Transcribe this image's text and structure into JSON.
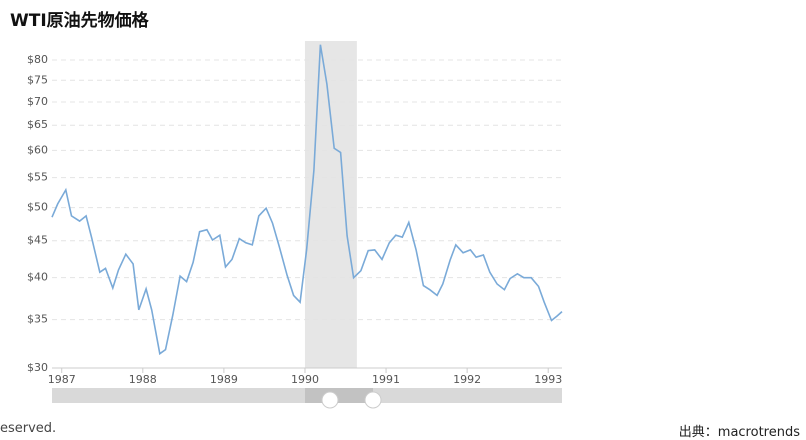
{
  "chart_data": {
    "type": "line",
    "title": "WTI原油先物価格",
    "log_y": true,
    "grid": true,
    "color": "#7aaad8",
    "x": [
      1986.88,
      1986.95,
      1987.05,
      1987.12,
      1987.22,
      1987.3,
      1987.37,
      1987.47,
      1987.54,
      1987.63,
      1987.7,
      1987.79,
      1987.88,
      1987.95,
      1988.04,
      1988.11,
      1988.21,
      1988.28,
      1988.37,
      1988.46,
      1988.54,
      1988.62,
      1988.7,
      1988.79,
      1988.86,
      1988.95,
      1989.02,
      1989.1,
      1989.19,
      1989.27,
      1989.35,
      1989.43,
      1989.52,
      1989.6,
      1989.68,
      1989.78,
      1989.86,
      1989.94,
      1990.02,
      1990.11,
      1990.19,
      1990.27,
      1990.36,
      1990.44,
      1990.52,
      1990.6,
      1990.69,
      1990.78,
      1990.86,
      1990.95,
      1991.04,
      1991.12,
      1991.2,
      1991.28,
      1991.37,
      1991.46,
      1991.54,
      1991.63,
      1991.7,
      1991.79,
      1991.86,
      1991.95,
      1992.04,
      1992.11,
      1992.2,
      1992.28,
      1992.37,
      1992.46,
      1992.53,
      1992.62,
      1992.7,
      1992.79,
      1992.88,
      1992.95,
      1993.04,
      1993.11,
      1993.17
    ],
    "values": [
      48.5,
      50.6,
      52.9,
      48.7,
      47.9,
      48.7,
      45.4,
      40.7,
      41.2,
      38.7,
      41.0,
      43.1,
      41.8,
      36.1,
      38.6,
      36.1,
      31.4,
      31.8,
      35.5,
      40.2,
      39.5,
      42.0,
      46.3,
      46.6,
      45.1,
      45.8,
      41.4,
      42.4,
      45.3,
      44.7,
      44.4,
      48.7,
      49.9,
      47.6,
      44.3,
      40.3,
      37.8,
      37.0,
      43.7,
      56.3,
      84.0,
      74.1,
      60.4,
      59.6,
      45.7,
      40.0,
      40.9,
      43.6,
      43.7,
      42.4,
      44.7,
      45.8,
      45.5,
      47.7,
      43.7,
      39.0,
      38.5,
      37.8,
      39.2,
      42.3,
      44.4,
      43.3,
      43.7,
      42.7,
      43.0,
      40.7,
      39.2,
      38.5,
      39.9,
      40.5,
      40.0,
      40.0,
      38.9,
      37.0,
      34.9,
      35.4,
      35.9
    ],
    "highlight_range": [
      1990.0,
      1990.64
    ],
    "xlim": [
      1986.88,
      1993.17
    ],
    "xticks": [
      1987,
      1988,
      1989,
      1990,
      1991,
      1992,
      1993
    ],
    "ylim": [
      30,
      85
    ],
    "yticks": [
      {
        "value": 30,
        "label": "$30"
      },
      {
        "value": 35,
        "label": "$35"
      },
      {
        "value": 40,
        "label": "$40"
      },
      {
        "value": 45,
        "label": "$45"
      },
      {
        "value": 50,
        "label": "$50"
      },
      {
        "value": 55,
        "label": "$55"
      },
      {
        "value": 60,
        "label": "$60"
      },
      {
        "value": 65,
        "label": "$65"
      },
      {
        "value": 70,
        "label": "$70"
      },
      {
        "value": 75,
        "label": "$75"
      },
      {
        "value": 80,
        "label": "$80"
      }
    ]
  },
  "footer": {
    "left": "eserved.",
    "right": "出典：macrotrends"
  }
}
